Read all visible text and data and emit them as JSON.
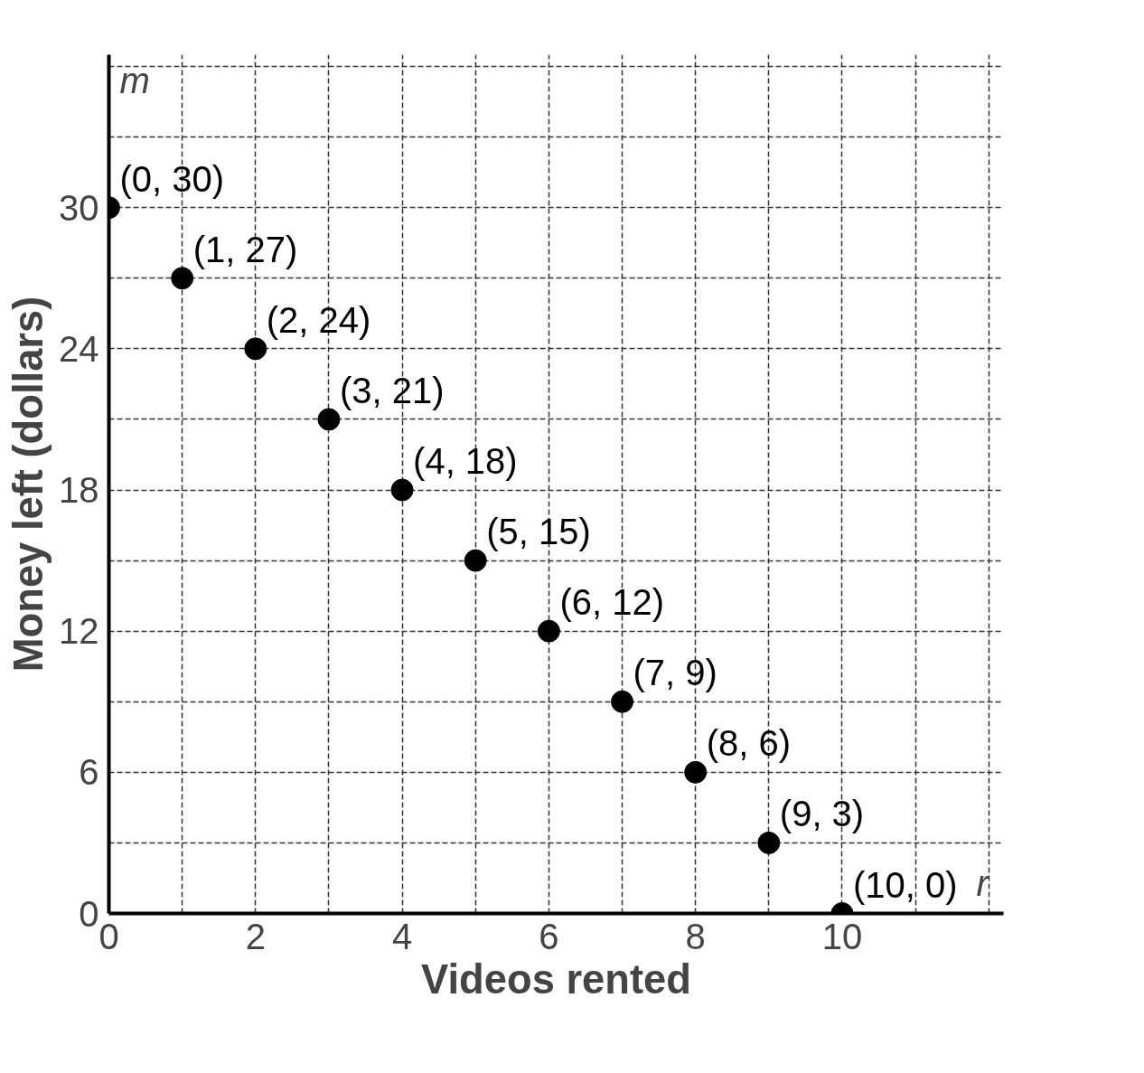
{
  "chart_data": {
    "type": "scatter",
    "xlabel": "Videos rented",
    "ylabel": "Money left (dollars)",
    "annotations": [
      "m",
      "r"
    ],
    "x": [
      0,
      1,
      2,
      3,
      4,
      5,
      6,
      7,
      8,
      9,
      10
    ],
    "series": [
      {
        "color": "#000000",
        "values": [
          30,
          27,
          24,
          21,
          18,
          15,
          12,
          9,
          6,
          3,
          0
        ],
        "value_labels": [
          "(0, 30)",
          "(1, 27)",
          "(2, 24)",
          "(3, 21)",
          "(4, 18)",
          "(5, 15)",
          "(6, 12)",
          "(7, 9)",
          "(8, 6)",
          "(9, 3)",
          "(10, 0)"
        ]
      }
    ],
    "xlim": [
      0,
      12.2
    ],
    "ylim": [
      0,
      36.5
    ],
    "xticks": [
      0,
      {
        "value": 1,
        "label": null
      },
      2,
      {
        "value": 3,
        "label": null
      },
      4,
      {
        "value": 5,
        "label": null
      },
      6,
      {
        "value": 7,
        "label": null
      },
      8,
      {
        "value": 9,
        "label": null
      },
      10,
      {
        "value": 11,
        "label": null
      },
      {
        "value": 12,
        "label": null
      }
    ],
    "yticks": [
      0,
      {
        "value": 3,
        "label": null
      },
      6,
      {
        "value": 9,
        "label": null
      },
      12,
      {
        "value": 15,
        "label": null
      },
      18,
      {
        "value": 21,
        "label": null
      },
      24,
      {
        "value": 27,
        "label": null
      },
      30,
      {
        "value": 33,
        "label": null
      },
      {
        "value": 36,
        "label": null
      }
    ],
    "grid": true,
    "marker": "circle"
  }
}
